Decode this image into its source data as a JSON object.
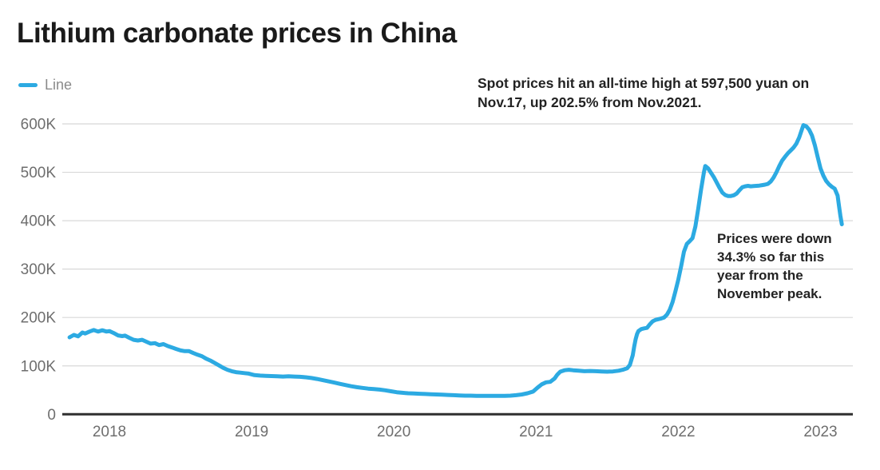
{
  "title": "Lithium carbonate prices in China",
  "legend": {
    "label": "Line"
  },
  "annotations": {
    "record_high": {
      "lines": [
        "Spot prices hit an all-time high at 597,500 yuan on",
        "Nov.17, up 202.5% from Nov.2021."
      ]
    },
    "down_from_peak": {
      "lines": [
        "Prices were down",
        "34.3% so far this",
        "year from the",
        "November peak."
      ]
    }
  },
  "chart_data": {
    "type": "line",
    "title": "Lithium carbonate prices in China",
    "unit": "yuan per tonne, values in thousands (K)",
    "grid": true,
    "legend_position": "top-left",
    "xlim": [
      2017.7,
      2023.25
    ],
    "ylim": [
      0,
      600
    ],
    "x_axis": {
      "label": "",
      "ticks": [
        {
          "value": 2018,
          "label": "2018"
        },
        {
          "value": 2019,
          "label": "2019"
        },
        {
          "value": 2020,
          "label": "2020"
        },
        {
          "value": 2021,
          "label": "2021"
        },
        {
          "value": 2022,
          "label": "2022"
        },
        {
          "value": 2023,
          "label": "2023"
        }
      ]
    },
    "y_axis": {
      "label": "",
      "ticks": [
        {
          "value": 600,
          "label": "600K"
        },
        {
          "value": 500,
          "label": "500K"
        },
        {
          "value": 400,
          "label": "400K"
        },
        {
          "value": 300,
          "label": "300K"
        },
        {
          "value": 200,
          "label": "200K"
        },
        {
          "value": 100,
          "label": "100K"
        },
        {
          "value": 0,
          "label": "0"
        }
      ]
    },
    "colors": {
      "line": "#2caae2",
      "grid": "#d8d8d8",
      "axis": "#2f2f2f",
      "tick_label": "#6e6e6e",
      "title": "#1a1a1a",
      "annotation": "#222222"
    },
    "key_points": {
      "all_time_high": {
        "date": "Nov.17",
        "value_yuan": 597500,
        "change_from_nov_2021_pct": 202.5
      },
      "change_this_year_from_november_peak_pct": -34.3
    },
    "series": [
      {
        "name": "Line",
        "color": "#2caae2",
        "points": [
          [
            2017.72,
            159
          ],
          [
            2017.75,
            164
          ],
          [
            2017.78,
            161
          ],
          [
            2017.81,
            169
          ],
          [
            2017.83,
            167
          ],
          [
            2017.86,
            171
          ],
          [
            2017.89,
            174
          ],
          [
            2017.92,
            171
          ],
          [
            2017.95,
            173.5
          ],
          [
            2017.98,
            171
          ],
          [
            2018.0,
            172
          ],
          [
            2018.03,
            168
          ],
          [
            2018.06,
            163
          ],
          [
            2018.09,
            161.5
          ],
          [
            2018.11,
            162.5
          ],
          [
            2018.14,
            158
          ],
          [
            2018.17,
            154
          ],
          [
            2018.2,
            152.5
          ],
          [
            2018.23,
            154
          ],
          [
            2018.26,
            150
          ],
          [
            2018.29,
            146
          ],
          [
            2018.32,
            147
          ],
          [
            2018.35,
            143
          ],
          [
            2018.38,
            145
          ],
          [
            2018.41,
            141
          ],
          [
            2018.44,
            138
          ],
          [
            2018.47,
            135
          ],
          [
            2018.5,
            132
          ],
          [
            2018.53,
            130.5
          ],
          [
            2018.56,
            130.5
          ],
          [
            2018.59,
            126.5
          ],
          [
            2018.62,
            123
          ],
          [
            2018.65,
            120
          ],
          [
            2018.68,
            115
          ],
          [
            2018.71,
            111
          ],
          [
            2018.74,
            106
          ],
          [
            2018.77,
            101
          ],
          [
            2018.8,
            96
          ],
          [
            2018.83,
            92
          ],
          [
            2018.86,
            89
          ],
          [
            2018.89,
            87
          ],
          [
            2018.92,
            86
          ],
          [
            2018.95,
            85
          ],
          [
            2018.98,
            84
          ],
          [
            2019.02,
            81
          ],
          [
            2019.06,
            80
          ],
          [
            2019.1,
            79.5
          ],
          [
            2019.14,
            79
          ],
          [
            2019.18,
            78.5
          ],
          [
            2019.22,
            78
          ],
          [
            2019.26,
            78.5
          ],
          [
            2019.3,
            78
          ],
          [
            2019.34,
            77.5
          ],
          [
            2019.38,
            76.5
          ],
          [
            2019.42,
            75
          ],
          [
            2019.46,
            73
          ],
          [
            2019.5,
            70.5
          ],
          [
            2019.54,
            68
          ],
          [
            2019.58,
            65.5
          ],
          [
            2019.62,
            63
          ],
          [
            2019.66,
            60.5
          ],
          [
            2019.7,
            58
          ],
          [
            2019.74,
            56
          ],
          [
            2019.78,
            54.5
          ],
          [
            2019.82,
            53
          ],
          [
            2019.86,
            52
          ],
          [
            2019.9,
            51
          ],
          [
            2019.94,
            49.5
          ],
          [
            2019.98,
            47.5
          ],
          [
            2020.02,
            45.5
          ],
          [
            2020.06,
            44.5
          ],
          [
            2020.1,
            43.5
          ],
          [
            2020.14,
            43
          ],
          [
            2020.18,
            42.5
          ],
          [
            2020.22,
            42
          ],
          [
            2020.26,
            41.5
          ],
          [
            2020.3,
            41
          ],
          [
            2020.34,
            40.5
          ],
          [
            2020.38,
            40
          ],
          [
            2020.42,
            39.5
          ],
          [
            2020.46,
            39
          ],
          [
            2020.5,
            38.5
          ],
          [
            2020.54,
            38.5
          ],
          [
            2020.58,
            38
          ],
          [
            2020.62,
            38
          ],
          [
            2020.66,
            38
          ],
          [
            2020.7,
            38
          ],
          [
            2020.74,
            38
          ],
          [
            2020.78,
            38
          ],
          [
            2020.82,
            38.5
          ],
          [
            2020.86,
            39.5
          ],
          [
            2020.9,
            41
          ],
          [
            2020.94,
            43.5
          ],
          [
            2020.98,
            47
          ],
          [
            2021.01,
            55
          ],
          [
            2021.04,
            62
          ],
          [
            2021.07,
            66
          ],
          [
            2021.1,
            67
          ],
          [
            2021.13,
            74
          ],
          [
            2021.15,
            82
          ],
          [
            2021.17,
            88
          ],
          [
            2021.2,
            91
          ],
          [
            2021.23,
            92
          ],
          [
            2021.26,
            91
          ],
          [
            2021.3,
            90
          ],
          [
            2021.34,
            89
          ],
          [
            2021.38,
            89.5
          ],
          [
            2021.42,
            89
          ],
          [
            2021.46,
            88.5
          ],
          [
            2021.5,
            88
          ],
          [
            2021.54,
            88.5
          ],
          [
            2021.58,
            90
          ],
          [
            2021.61,
            92
          ],
          [
            2021.64,
            95
          ],
          [
            2021.66,
            102
          ],
          [
            2021.68,
            122
          ],
          [
            2021.69,
            140
          ],
          [
            2021.7,
            155
          ],
          [
            2021.71,
            166
          ],
          [
            2021.72,
            172
          ],
          [
            2021.74,
            176
          ],
          [
            2021.76,
            177.5
          ],
          [
            2021.78,
            178.5
          ],
          [
            2021.8,
            186
          ],
          [
            2021.82,
            192
          ],
          [
            2021.84,
            195
          ],
          [
            2021.86,
            196.5
          ],
          [
            2021.88,
            198
          ],
          [
            2021.9,
            200
          ],
          [
            2021.92,
            206
          ],
          [
            2021.94,
            216
          ],
          [
            2021.96,
            232
          ],
          [
            2021.98,
            254
          ],
          [
            2022.0,
            278
          ],
          [
            2022.02,
            306
          ],
          [
            2022.04,
            336
          ],
          [
            2022.06,
            352
          ],
          [
            2022.08,
            357.5
          ],
          [
            2022.1,
            364
          ],
          [
            2022.12,
            388
          ],
          [
            2022.14,
            424
          ],
          [
            2022.16,
            464
          ],
          [
            2022.18,
            500
          ],
          [
            2022.19,
            513
          ],
          [
            2022.21,
            508
          ],
          [
            2022.23,
            499
          ],
          [
            2022.25,
            490
          ],
          [
            2022.27,
            479
          ],
          [
            2022.29,
            468
          ],
          [
            2022.31,
            458
          ],
          [
            2022.33,
            453
          ],
          [
            2022.35,
            451
          ],
          [
            2022.37,
            451
          ],
          [
            2022.39,
            452.5
          ],
          [
            2022.41,
            456
          ],
          [
            2022.43,
            463
          ],
          [
            2022.45,
            469
          ],
          [
            2022.47,
            471
          ],
          [
            2022.49,
            472
          ],
          [
            2022.51,
            471
          ],
          [
            2022.53,
            471.5
          ],
          [
            2022.55,
            472
          ],
          [
            2022.57,
            472.5
          ],
          [
            2022.59,
            473.5
          ],
          [
            2022.61,
            474.5
          ],
          [
            2022.63,
            476
          ],
          [
            2022.65,
            481
          ],
          [
            2022.67,
            489
          ],
          [
            2022.69,
            500
          ],
          [
            2022.71,
            513
          ],
          [
            2022.73,
            524
          ],
          [
            2022.75,
            532
          ],
          [
            2022.77,
            539
          ],
          [
            2022.79,
            545
          ],
          [
            2022.81,
            551
          ],
          [
            2022.83,
            559
          ],
          [
            2022.85,
            572
          ],
          [
            2022.87,
            589
          ],
          [
            2022.88,
            597.5
          ],
          [
            2022.9,
            595
          ],
          [
            2022.92,
            588
          ],
          [
            2022.94,
            576
          ],
          [
            2022.96,
            556
          ],
          [
            2022.98,
            532
          ],
          [
            2023.0,
            508
          ],
          [
            2023.02,
            493
          ],
          [
            2023.04,
            482
          ],
          [
            2023.06,
            475
          ],
          [
            2023.08,
            470
          ],
          [
            2023.1,
            466
          ],
          [
            2023.12,
            452
          ],
          [
            2023.13,
            430
          ],
          [
            2023.14,
            410
          ],
          [
            2023.15,
            392.5
          ]
        ]
      }
    ]
  }
}
